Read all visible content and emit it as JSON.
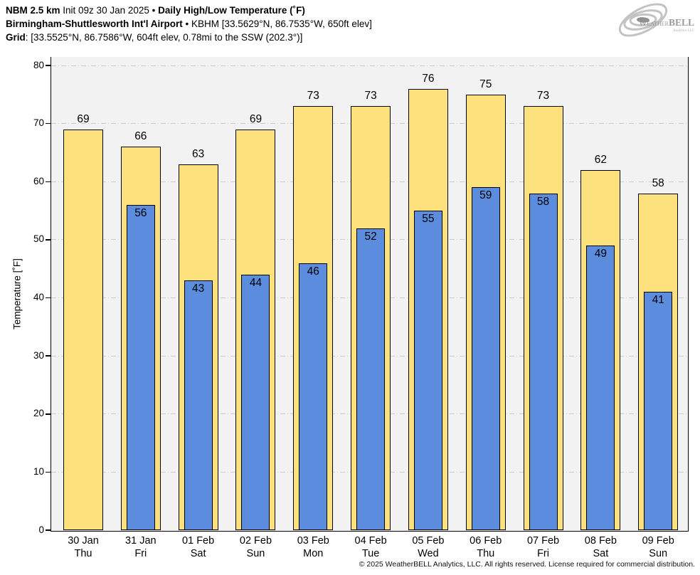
{
  "header": {
    "model": "NBM 2.5 km",
    "init": " Init 09z 30 Jan 2025 ",
    "bullet1": "• ",
    "title": "Daily High/Low Temperature (˚F)",
    "station": "Birmingham-Shuttlesworth Int'l Airport",
    "bullet2": " • ",
    "station_info": "KBHM [33.5629°N, 86.7535°W, 650ft elev]",
    "grid_label": "Grid",
    "grid_info": ": [33.5525°N, 86.7586°W, 604ft elev, 0.78mi to the SSW (202.3°)]"
  },
  "logo": {
    "weather": "Weather",
    "bell": "BELL",
    "sub": "Analytics LLC"
  },
  "footer": {
    "copyright": "© 2025 WeatherBELL Analytics, LLC. All rights reserved. License required for commercial distribution."
  },
  "chart_data": {
    "type": "bar",
    "title": "Daily High/Low Temperature (°F)",
    "ylabel": "Temperature [˚F]",
    "ylim": [
      0,
      80
    ],
    "yticks": [
      0,
      10,
      20,
      30,
      40,
      50,
      60,
      70,
      80
    ],
    "grid": true,
    "plot_background": "#f2f2f2",
    "gridline_color": "#cccccc",
    "categories": [
      {
        "date": "30 Jan",
        "day": "Thu"
      },
      {
        "date": "31 Jan",
        "day": "Fri"
      },
      {
        "date": "01 Feb",
        "day": "Sat"
      },
      {
        "date": "02 Feb",
        "day": "Sun"
      },
      {
        "date": "03 Feb",
        "day": "Mon"
      },
      {
        "date": "04 Feb",
        "day": "Tue"
      },
      {
        "date": "05 Feb",
        "day": "Wed"
      },
      {
        "date": "06 Feb",
        "day": "Thu"
      },
      {
        "date": "07 Feb",
        "day": "Fri"
      },
      {
        "date": "08 Feb",
        "day": "Sat"
      },
      {
        "date": "09 Feb",
        "day": "Sun"
      }
    ],
    "series": [
      {
        "name": "Daily High",
        "color": "#FCE17D",
        "values": [
          69,
          66,
          63,
          69,
          73,
          73,
          76,
          75,
          73,
          62,
          58
        ]
      },
      {
        "name": "Daily Low",
        "color": "#5B8CDE",
        "values": [
          null,
          56,
          43,
          44,
          46,
          52,
          55,
          59,
          58,
          49,
          41
        ]
      }
    ]
  }
}
